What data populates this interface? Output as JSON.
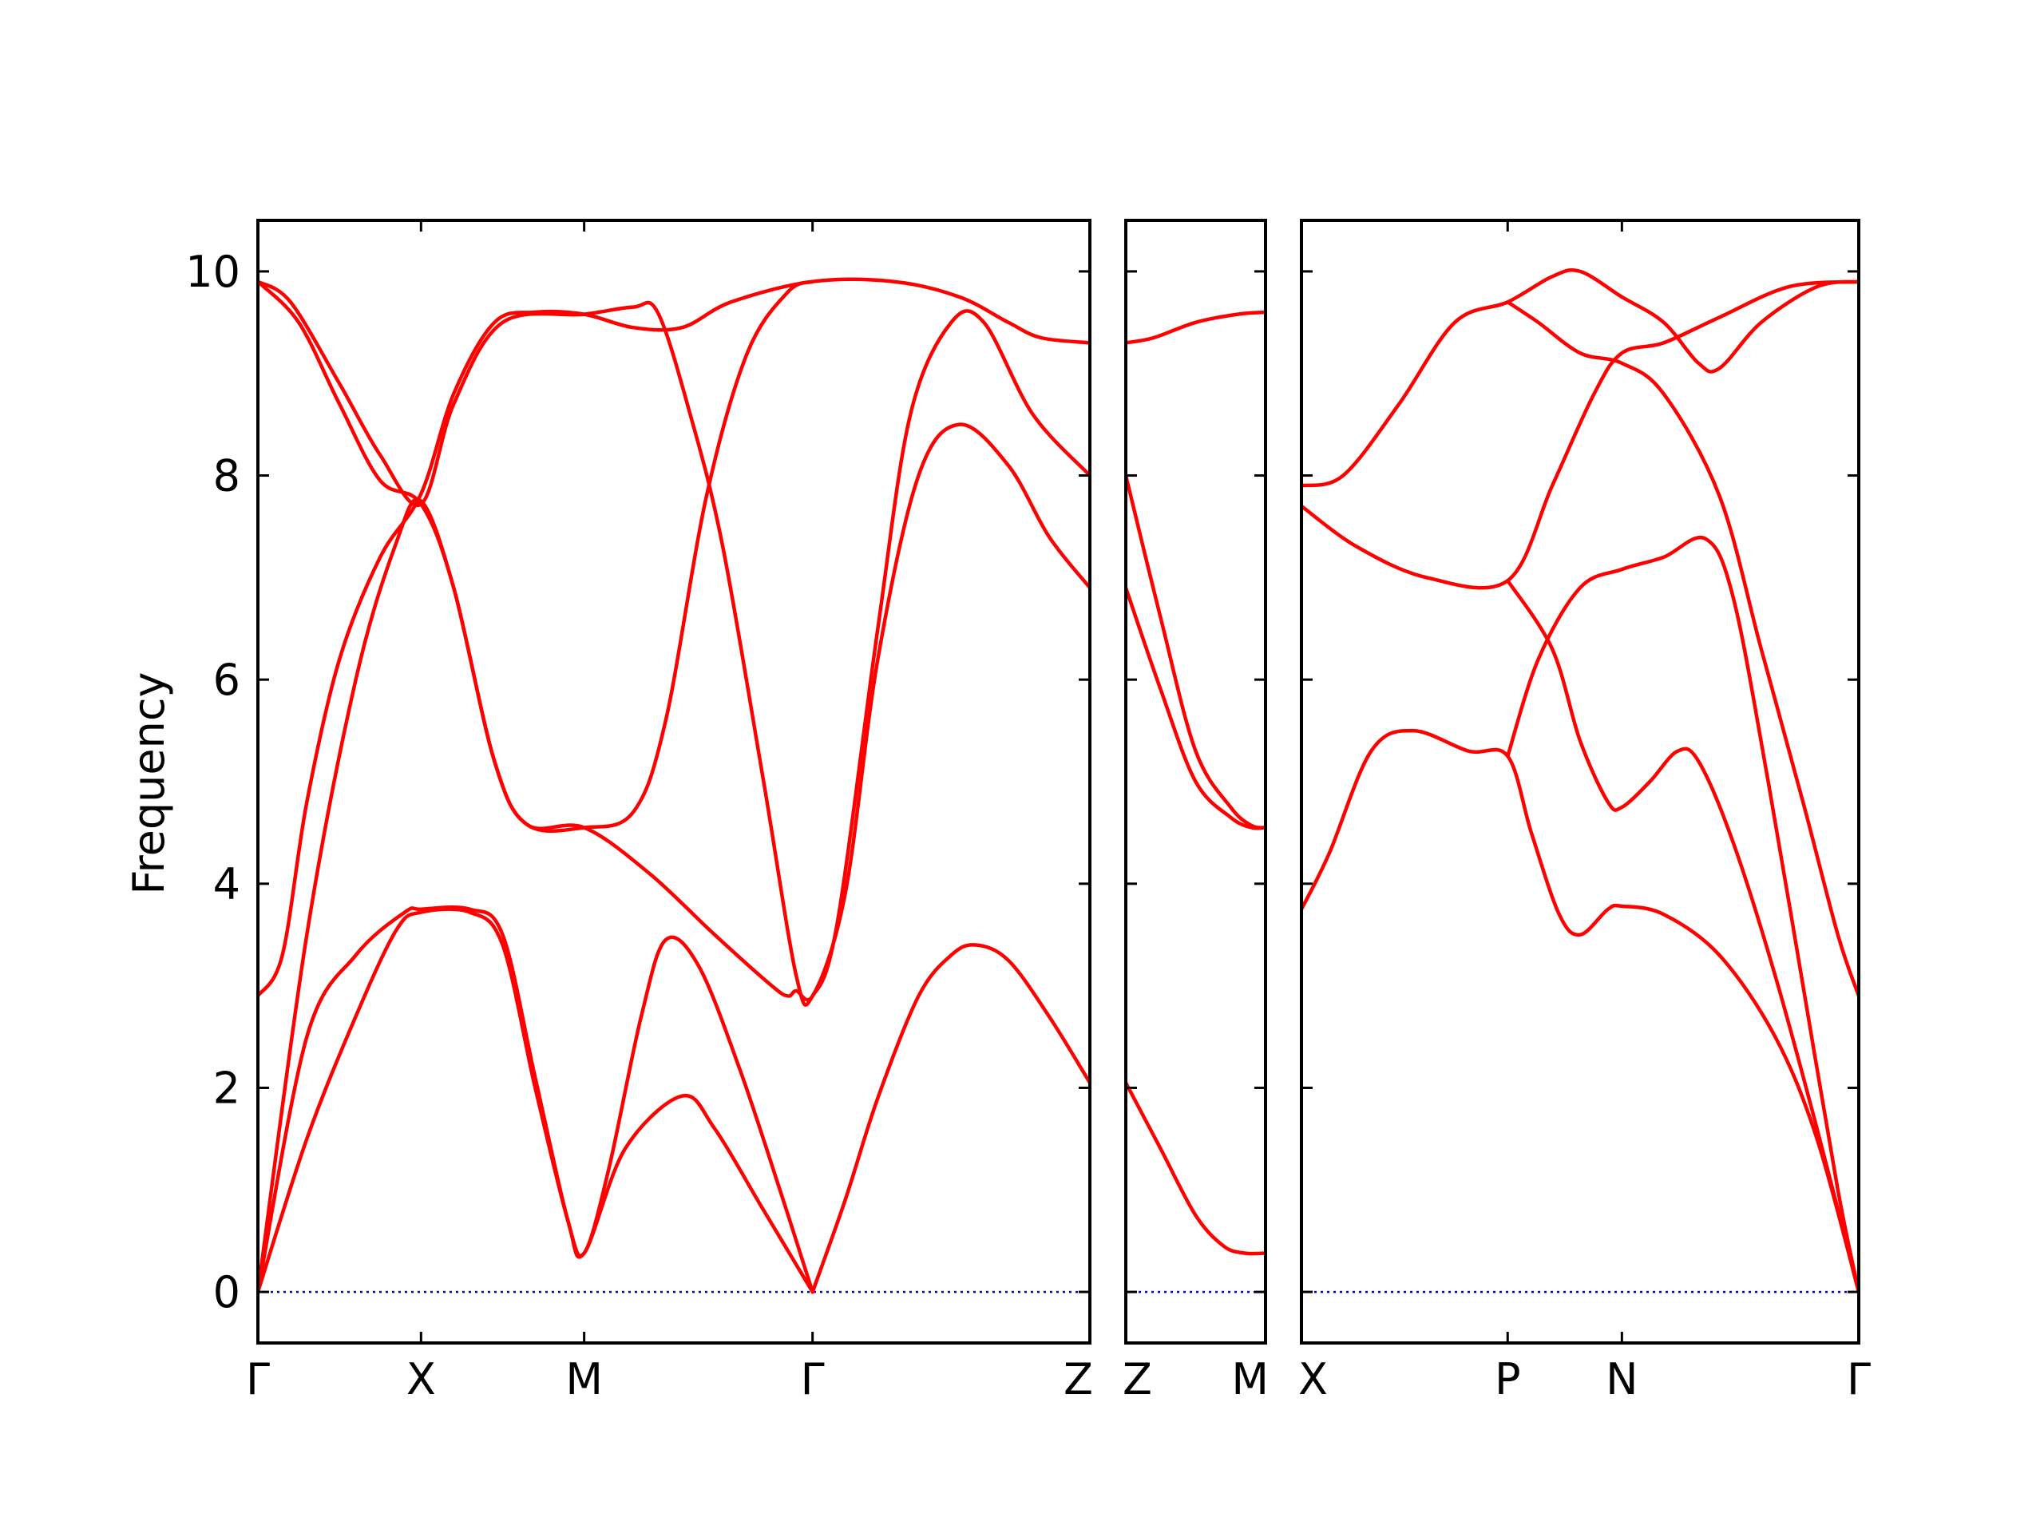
{
  "chart_data": {
    "type": "line",
    "ylabel": "Frequency",
    "ylim": [
      -0.5,
      10.5
    ],
    "yticks": [
      0,
      2,
      4,
      6,
      8,
      10
    ],
    "grid": false,
    "colors": {
      "bands": "#ff0000",
      "zero_line": "#0000cc",
      "axes": "#000000"
    },
    "panels": [
      {
        "xlim": [
          0,
          5.1
        ],
        "labels": [
          {
            "x": 0,
            "text": "Γ"
          },
          {
            "x": 1.0,
            "text": "X"
          },
          {
            "x": 2.0,
            "text": "M"
          },
          {
            "x": 3.4,
            "text": "Γ"
          },
          {
            "x": 5.1,
            "text": "Z"
          }
        ],
        "series": [
          {
            "points": [
              [
                0,
                0
              ],
              [
                0.3,
                2.5
              ],
              [
                0.6,
                3.3
              ],
              [
                0.9,
                3.72
              ],
              [
                1.0,
                3.75
              ],
              [
                1.3,
                3.75
              ],
              [
                1.5,
                3.5
              ],
              [
                1.7,
                2.1
              ],
              [
                1.9,
                0.7
              ],
              [
                2.0,
                0.38
              ],
              [
                2.15,
                1.2
              ],
              [
                2.35,
                2.7
              ],
              [
                2.5,
                3.45
              ],
              [
                2.7,
                3.2
              ],
              [
                2.95,
                2.2
              ],
              [
                3.2,
                1.0
              ],
              [
                3.4,
                0
              ]
            ]
          },
          {
            "points": [
              [
                0,
                0
              ],
              [
                0.3,
                1.5
              ],
              [
                0.6,
                2.7
              ],
              [
                0.85,
                3.55
              ],
              [
                1.0,
                3.72
              ],
              [
                1.3,
                3.72
              ],
              [
                1.5,
                3.4
              ],
              [
                1.7,
                2.0
              ],
              [
                1.9,
                0.7
              ],
              [
                2.0,
                0.38
              ],
              [
                2.25,
                1.4
              ],
              [
                2.6,
                1.92
              ],
              [
                2.8,
                1.6
              ],
              [
                3.1,
                0.8
              ],
              [
                3.4,
                0
              ]
            ]
          },
          {
            "points": [
              [
                0,
                2.9
              ],
              [
                0.15,
                3.3
              ],
              [
                0.3,
                4.8
              ],
              [
                0.5,
                6.2
              ],
              [
                0.75,
                7.2
              ],
              [
                1.0,
                7.82
              ],
              [
                1.2,
                8.8
              ],
              [
                1.45,
                9.5
              ],
              [
                1.7,
                9.6
              ],
              [
                2.0,
                9.58
              ],
              [
                2.3,
                9.45
              ],
              [
                2.6,
                9.45
              ],
              [
                2.9,
                9.7
              ],
              [
                3.4,
                9.9
              ],
              [
                3.9,
                9.9
              ],
              [
                4.3,
                9.75
              ],
              [
                4.6,
                9.5
              ],
              [
                4.8,
                9.35
              ],
              [
                5.1,
                9.3
              ]
            ]
          },
          {
            "points": [
              [
                0,
                0
              ],
              [
                0.3,
                3.5
              ],
              [
                0.6,
                6.0
              ],
              [
                0.85,
                7.35
              ],
              [
                1.0,
                7.75
              ],
              [
                1.2,
                6.9
              ],
              [
                1.45,
                5.2
              ],
              [
                1.65,
                4.58
              ],
              [
                2.0,
                4.55
              ],
              [
                2.3,
                4.7
              ],
              [
                2.5,
                5.6
              ],
              [
                2.75,
                7.8
              ],
              [
                3.0,
                9.2
              ],
              [
                3.25,
                9.8
              ],
              [
                3.4,
                9.9
              ]
            ]
          },
          {
            "points": [
              [
                0,
                9.9
              ],
              [
                0.25,
                9.5
              ],
              [
                0.5,
                8.7
              ],
              [
                0.75,
                7.95
              ],
              [
                1.0,
                7.72
              ],
              [
                1.2,
                6.9
              ],
              [
                1.45,
                5.2
              ],
              [
                1.65,
                4.58
              ],
              [
                2.0,
                4.55
              ],
              [
                2.4,
                4.1
              ],
              [
                2.8,
                3.5
              ],
              [
                3.15,
                3.0
              ],
              [
                3.25,
                2.9
              ],
              [
                3.3,
                2.95
              ],
              [
                3.4,
                2.9
              ],
              [
                3.55,
                3.6
              ],
              [
                3.8,
                6.5
              ],
              [
                4.0,
                8.6
              ],
              [
                4.25,
                9.5
              ],
              [
                4.45,
                9.5
              ],
              [
                4.75,
                8.6
              ],
              [
                5.1,
                8.0
              ]
            ]
          },
          {
            "points": [
              [
                0,
                9.9
              ],
              [
                0.2,
                9.7
              ],
              [
                0.5,
                8.9
              ],
              [
                0.75,
                8.2
              ],
              [
                1.0,
                7.72
              ],
              [
                1.2,
                8.7
              ],
              [
                1.5,
                9.5
              ],
              [
                2.0,
                9.58
              ],
              [
                2.3,
                9.65
              ],
              [
                2.45,
                9.6
              ],
              [
                2.65,
                8.6
              ],
              [
                2.85,
                7.3
              ],
              [
                3.1,
                5.0
              ],
              [
                3.3,
                3.1
              ],
              [
                3.4,
                2.9
              ],
              [
                3.6,
                3.9
              ],
              [
                3.8,
                6.2
              ],
              [
                4.05,
                8.0
              ],
              [
                4.3,
                8.5
              ],
              [
                4.6,
                8.1
              ],
              [
                4.85,
                7.4
              ],
              [
                5.1,
                6.9
              ]
            ]
          },
          {
            "points": [
              [
                3.4,
                0
              ],
              [
                3.6,
                0.9
              ],
              [
                3.8,
                1.9
              ],
              [
                4.05,
                2.9
              ],
              [
                4.25,
                3.3
              ],
              [
                4.4,
                3.4
              ],
              [
                4.6,
                3.25
              ],
              [
                4.85,
                2.7
              ],
              [
                5.1,
                2.05
              ]
            ]
          }
        ]
      },
      {
        "xlim": [
          0,
          1.0
        ],
        "labels": [
          {
            "x": 0,
            "text": "Z"
          },
          {
            "x": 1.0,
            "text": "M"
          }
        ],
        "series": [
          {
            "points": [
              [
                0,
                9.3
              ],
              [
                0.2,
                9.35
              ],
              [
                0.5,
                9.5
              ],
              [
                0.8,
                9.58
              ],
              [
                1.0,
                9.6
              ]
            ]
          },
          {
            "points": [
              [
                0,
                8.0
              ],
              [
                0.25,
                6.6
              ],
              [
                0.5,
                5.3
              ],
              [
                0.75,
                4.75
              ],
              [
                0.9,
                4.57
              ],
              [
                1.0,
                4.55
              ]
            ]
          },
          {
            "points": [
              [
                0,
                6.9
              ],
              [
                0.25,
                5.9
              ],
              [
                0.5,
                5.0
              ],
              [
                0.75,
                4.65
              ],
              [
                0.9,
                4.55
              ],
              [
                1.0,
                4.55
              ]
            ]
          },
          {
            "points": [
              [
                0,
                2.05
              ],
              [
                0.25,
                1.4
              ],
              [
                0.5,
                0.75
              ],
              [
                0.7,
                0.45
              ],
              [
                0.85,
                0.38
              ],
              [
                1.0,
                0.38
              ]
            ]
          }
        ]
      },
      {
        "xlim": [
          0,
          4.0
        ],
        "labels": [
          {
            "x": 0,
            "text": "X"
          },
          {
            "x": 1.48,
            "text": "P"
          },
          {
            "x": 2.3,
            "text": "N"
          },
          {
            "x": 4.0,
            "text": "Γ"
          }
        ],
        "series": [
          {
            "points": [
              [
                0,
                7.9
              ],
              [
                0.3,
                8.0
              ],
              [
                0.7,
                8.7
              ],
              [
                1.1,
                9.5
              ],
              [
                1.48,
                9.7
              ],
              [
                1.8,
                9.95
              ],
              [
                2.0,
                10.0
              ],
              [
                2.3,
                9.75
              ],
              [
                2.6,
                9.5
              ],
              [
                2.85,
                9.1
              ],
              [
                3.0,
                9.05
              ],
              [
                3.3,
                9.5
              ],
              [
                3.7,
                9.85
              ],
              [
                4.0,
                9.9
              ]
            ]
          },
          {
            "points": [
              [
                0,
                7.7
              ],
              [
                0.4,
                7.3
              ],
              [
                0.9,
                7.0
              ],
              [
                1.48,
                6.97
              ],
              [
                1.8,
                7.9
              ],
              [
                2.1,
                8.8
              ],
              [
                2.3,
                9.2
              ],
              [
                2.6,
                9.3
              ],
              [
                3.0,
                9.55
              ],
              [
                3.5,
                9.85
              ],
              [
                4.0,
                9.9
              ]
            ]
          },
          {
            "points": [
              [
                1.48,
                9.7
              ],
              [
                1.7,
                9.5
              ],
              [
                2.0,
                9.2
              ],
              [
                2.3,
                9.1
              ],
              [
                2.6,
                8.8
              ],
              [
                3.0,
                7.8
              ],
              [
                3.3,
                6.3
              ],
              [
                3.6,
                4.8
              ],
              [
                3.85,
                3.5
              ],
              [
                4.0,
                2.9
              ]
            ]
          },
          {
            "points": [
              [
                1.48,
                6.97
              ],
              [
                1.8,
                6.3
              ],
              [
                2.0,
                5.4
              ],
              [
                2.2,
                4.8
              ],
              [
                2.3,
                4.75
              ],
              [
                2.5,
                5.0
              ],
              [
                2.7,
                5.3
              ],
              [
                2.85,
                5.2
              ],
              [
                3.1,
                4.4
              ],
              [
                3.4,
                3.1
              ],
              [
                3.7,
                1.6
              ],
              [
                4.0,
                0
              ]
            ]
          },
          {
            "points": [
              [
                0,
                3.75
              ],
              [
                0.2,
                4.3
              ],
              [
                0.5,
                5.3
              ],
              [
                0.8,
                5.5
              ],
              [
                1.2,
                5.3
              ],
              [
                1.48,
                5.25
              ],
              [
                1.65,
                4.5
              ],
              [
                1.85,
                3.7
              ],
              [
                2.0,
                3.5
              ],
              [
                2.2,
                3.75
              ],
              [
                2.3,
                3.78
              ],
              [
                2.6,
                3.7
              ],
              [
                3.0,
                3.3
              ],
              [
                3.4,
                2.5
              ],
              [
                3.7,
                1.5
              ],
              [
                4.0,
                0
              ]
            ]
          },
          {
            "points": [
              [
                1.48,
                5.25
              ],
              [
                1.7,
                6.2
              ],
              [
                2.0,
                6.9
              ],
              [
                2.3,
                7.08
              ],
              [
                2.6,
                7.2
              ],
              [
                2.9,
                7.38
              ],
              [
                3.1,
                6.8
              ],
              [
                3.35,
                5.0
              ],
              [
                3.6,
                3.0
              ],
              [
                3.85,
                1.0
              ],
              [
                4.0,
                0
              ]
            ]
          }
        ]
      }
    ]
  }
}
